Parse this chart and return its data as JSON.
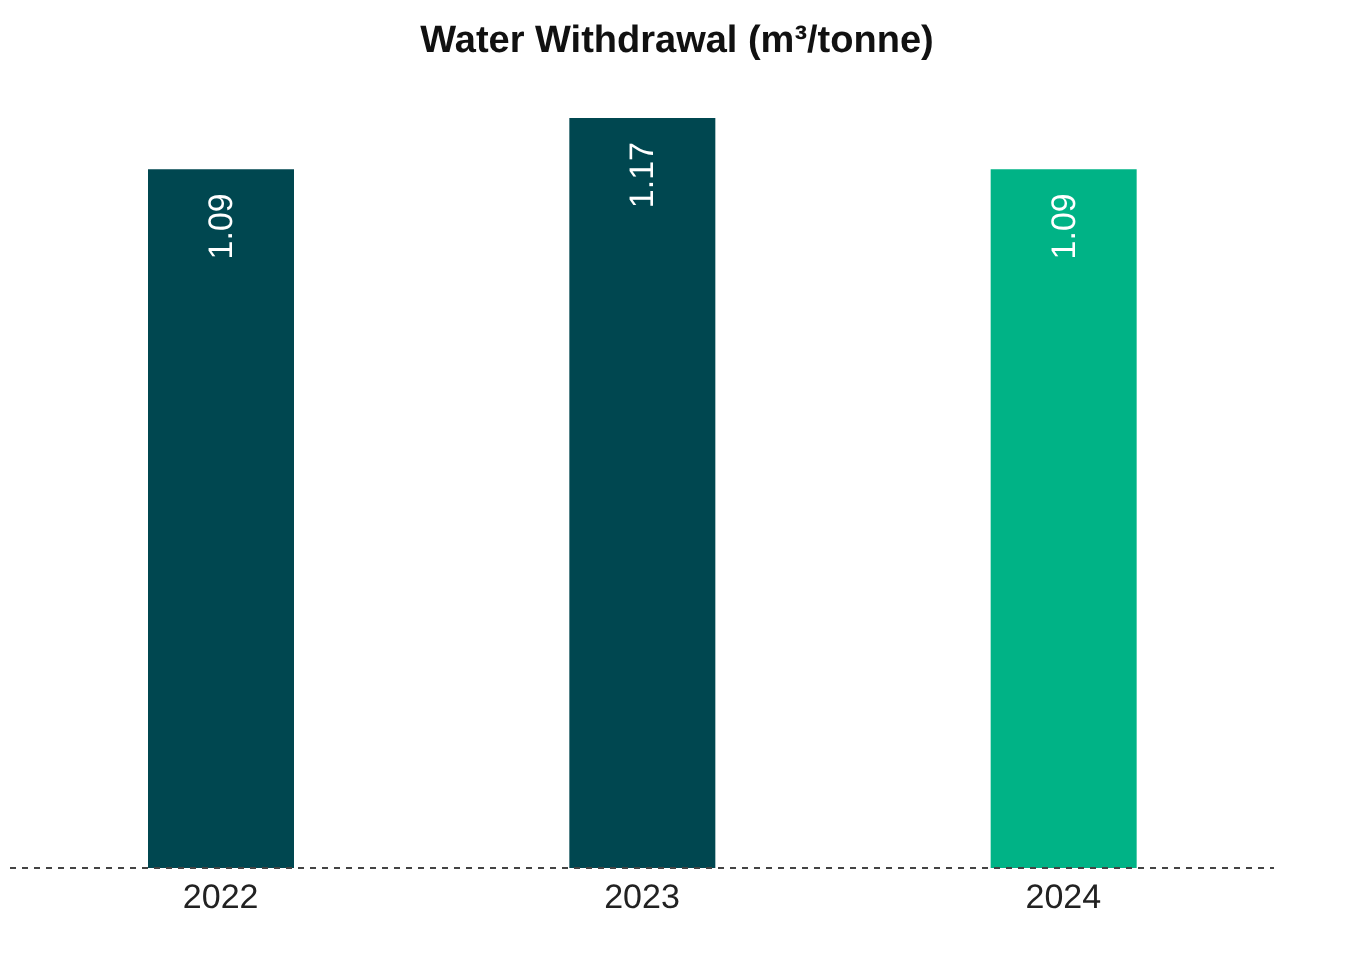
{
  "chart_data": {
    "type": "bar",
    "title": "Water Withdrawal (m³/tonne)",
    "categories": [
      "2022",
      "2023",
      "2024"
    ],
    "values": [
      1.09,
      1.17,
      1.09
    ],
    "colors": [
      "#004750",
      "#004750",
      "#00b386"
    ],
    "data_labels": true,
    "grid": false,
    "legend": false
  }
}
